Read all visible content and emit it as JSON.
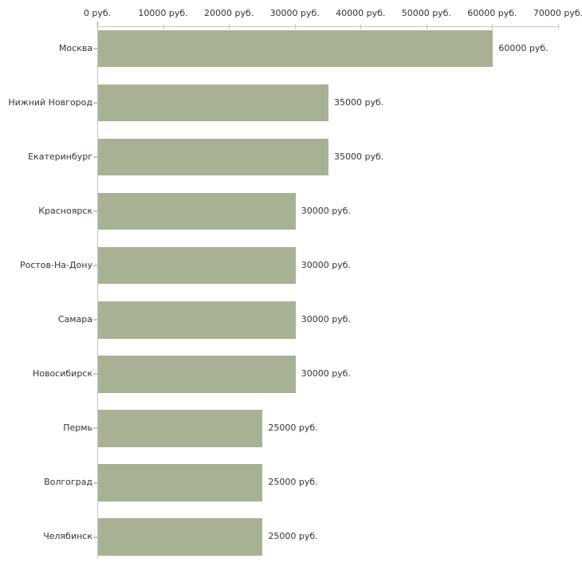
{
  "chart_data": {
    "type": "bar",
    "orientation": "horizontal",
    "title": "",
    "xlabel": "",
    "ylabel": "",
    "unit": "руб.",
    "categories": [
      "Москва",
      "Нижний Новгород",
      "Екатеринбург",
      "Красноярск",
      "Ростов-На-Дону",
      "Самара",
      "Новосибирск",
      "Пермь",
      "Волгоград",
      "Челябинск"
    ],
    "values": [
      60000,
      35000,
      35000,
      30000,
      30000,
      30000,
      30000,
      25000,
      25000,
      25000
    ],
    "value_labels": [
      "60000 руб.",
      "35000 руб.",
      "35000 руб.",
      "30000 руб.",
      "30000 руб.",
      "30000 руб.",
      "30000 руб.",
      "25000 руб.",
      "25000 руб.",
      "25000 руб."
    ],
    "x_axis": {
      "position": "top",
      "min": 0,
      "max": 70000,
      "ticks": [
        0,
        10000,
        20000,
        30000,
        40000,
        50000,
        60000,
        70000
      ],
      "tick_labels": [
        "0 руб.",
        "10000 руб.",
        "20000 руб.",
        "30000 руб.",
        "40000 руб.",
        "50000 руб.",
        "60000 руб.",
        "70000 руб."
      ]
    },
    "grid": false,
    "legend": false,
    "colors": {
      "bar": "#a9b194",
      "axis": "#c6c6c6",
      "tick": "#cbcb9e",
      "text": "#333333",
      "background": "#ffffff"
    }
  }
}
